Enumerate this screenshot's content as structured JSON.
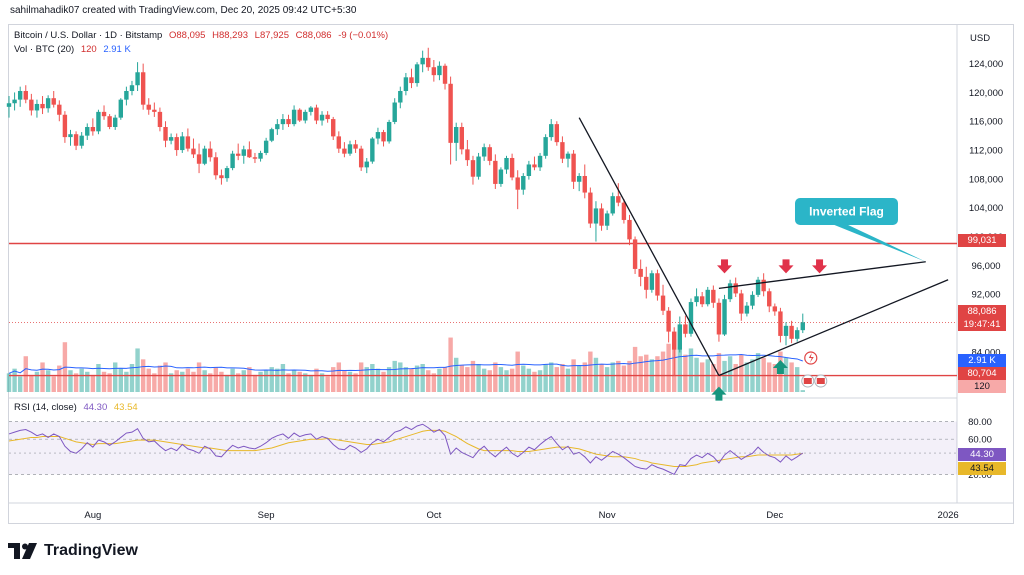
{
  "header": {
    "attribution": "sahilmahadik07 created with TradingView.com, Dec 20, 2025 09:42 UTC+5:30"
  },
  "legend": {
    "symbol": "Bitcoin / U.S. Dollar · 1D · Bitstamp",
    "open": "O88,095",
    "high": "H88,293",
    "low": "L87,925",
    "close": "C88,086",
    "change": "-9 (−0.01%)",
    "vol_label": "Vol · BTC (20)",
    "vol_a": "120",
    "vol_b": "2.91 K",
    "rsi_label": "RSI (14, close)",
    "rsi_value": "44.30",
    "rsi_ma": "43.54"
  },
  "currency": "USD",
  "price_axis": {
    "ticks": [
      "124,000",
      "120,000",
      "116,000",
      "112,000",
      "108,000",
      "104,000",
      "100,000",
      "96,000",
      "92,000",
      "84,000"
    ]
  },
  "rsi_axis": {
    "ticks": [
      "80.00",
      "60.00",
      "20.00"
    ]
  },
  "price_tags": {
    "resistance": "99,031",
    "last": "88,086",
    "countdown": "19:47:41",
    "volume_ma": "2.91 K",
    "support": "80,704",
    "volume": "120",
    "rsi_value": "44.30",
    "rsi_ma": "43.54"
  },
  "time_axis": {
    "labels": [
      "Aug",
      "Sep",
      "Oct",
      "Nov",
      "Dec",
      "2026"
    ]
  },
  "annotation": {
    "pattern_label": "Inverted Flag"
  },
  "brand": {
    "name": "TradingView"
  },
  "colors": {
    "up": "#26a69a",
    "down": "#ef5350",
    "level": "#e04444",
    "callout": "#2bb5c8",
    "rsi": "#7e57c2",
    "rsi_ma": "#e8b82a",
    "arrow_down": "#e0324a",
    "arrow_up": "#16957e"
  },
  "chart_data": {
    "type": "candlestick",
    "symbol": "BTC/USD",
    "timeframe": "1D",
    "start_date": "2025-07-17",
    "price_range": [
      78000,
      127000
    ],
    "levels": {
      "resistance": 99031,
      "support": 80704,
      "last_close": 88086
    },
    "ohlc": [
      [
        118000,
        119500,
        116500,
        118500
      ],
      [
        118500,
        120000,
        117500,
        119000
      ],
      [
        119000,
        120800,
        118000,
        120200
      ],
      [
        120200,
        121000,
        118500,
        119000
      ],
      [
        119000,
        119800,
        116800,
        117500
      ],
      [
        117500,
        119000,
        116500,
        118400
      ],
      [
        118400,
        119500,
        117000,
        117800
      ],
      [
        117800,
        119600,
        117200,
        119200
      ],
      [
        119200,
        120200,
        117900,
        118300
      ],
      [
        118300,
        118900,
        116000,
        116900
      ],
      [
        116900,
        117400,
        113000,
        113800
      ],
      [
        113800,
        114800,
        112600,
        114200
      ],
      [
        114200,
        114600,
        112000,
        112600
      ],
      [
        112600,
        114500,
        112200,
        114000
      ],
      [
        114000,
        115700,
        113400,
        115200
      ],
      [
        115200,
        116400,
        114000,
        114600
      ],
      [
        114600,
        117600,
        114200,
        117300
      ],
      [
        117300,
        118200,
        116200,
        116700
      ],
      [
        116700,
        117000,
        114900,
        115200
      ],
      [
        115200,
        116900,
        114800,
        116500
      ],
      [
        116500,
        119200,
        116200,
        119000
      ],
      [
        119000,
        120800,
        118200,
        120200
      ],
      [
        120200,
        121600,
        119600,
        121000
      ],
      [
        121000,
        124200,
        120200,
        122800
      ],
      [
        122800,
        124000,
        117600,
        118300
      ],
      [
        118300,
        119200,
        116900,
        117600
      ],
      [
        117600,
        118600,
        116600,
        117300
      ],
      [
        117300,
        117900,
        114600,
        115200
      ],
      [
        115200,
        116000,
        112400,
        113300
      ],
      [
        113300,
        114300,
        112800,
        113800
      ],
      [
        113800,
        114300,
        111200,
        112000
      ],
      [
        112000,
        114500,
        111600,
        113900
      ],
      [
        113900,
        115000,
        111800,
        112200
      ],
      [
        112200,
        113600,
        110900,
        111400
      ],
      [
        111400,
        112900,
        108800,
        110100
      ],
      [
        110100,
        112600,
        109900,
        112200
      ],
      [
        112200,
        113200,
        110400,
        111000
      ],
      [
        111000,
        111700,
        107900,
        108500
      ],
      [
        108500,
        109300,
        107200,
        108100
      ],
      [
        108100,
        109800,
        107600,
        109500
      ],
      [
        109500,
        111900,
        109200,
        111500
      ],
      [
        111500,
        112900,
        110600,
        111200
      ],
      [
        111200,
        112600,
        110100,
        112100
      ],
      [
        112100,
        113200,
        110900,
        111000
      ],
      [
        111000,
        111600,
        110200,
        110800
      ],
      [
        110800,
        111900,
        110400,
        111600
      ],
      [
        111600,
        113700,
        111300,
        113300
      ],
      [
        113300,
        115100,
        113100,
        114900
      ],
      [
        114900,
        116300,
        114100,
        115600
      ],
      [
        115600,
        117000,
        114800,
        116300
      ],
      [
        116300,
        116900,
        115200,
        115600
      ],
      [
        115600,
        118200,
        115300,
        117600
      ],
      [
        117600,
        117800,
        115900,
        116100
      ],
      [
        116100,
        117600,
        115700,
        117300
      ],
      [
        117300,
        118100,
        116800,
        117900
      ],
      [
        117900,
        118300,
        115600,
        116100
      ],
      [
        116100,
        117400,
        115400,
        116900
      ],
      [
        116900,
        117400,
        115800,
        116300
      ],
      [
        116300,
        116600,
        113400,
        113900
      ],
      [
        113900,
        114600,
        111600,
        112200
      ],
      [
        112200,
        113100,
        111000,
        111500
      ],
      [
        111500,
        113300,
        111200,
        112800
      ],
      [
        112800,
        113400,
        111600,
        112200
      ],
      [
        112200,
        112600,
        109100,
        109600
      ],
      [
        109600,
        110900,
        108800,
        110400
      ],
      [
        110400,
        113800,
        110100,
        113600
      ],
      [
        113600,
        115100,
        112800,
        114500
      ],
      [
        114500,
        114800,
        112500,
        113200
      ],
      [
        113200,
        116200,
        112900,
        115900
      ],
      [
        115900,
        119200,
        115600,
        118600
      ],
      [
        118600,
        120800,
        117800,
        120200
      ],
      [
        120200,
        122700,
        119600,
        122100
      ],
      [
        122100,
        123300,
        120600,
        121300
      ],
      [
        121300,
        124200,
        120800,
        123900
      ],
      [
        123900,
        125800,
        122800,
        124800
      ],
      [
        124800,
        126200,
        123000,
        123500
      ],
      [
        123500,
        124500,
        121500,
        122400
      ],
      [
        122400,
        124300,
        121700,
        123700
      ],
      [
        123700,
        124000,
        120400,
        121200
      ],
      [
        121200,
        122200,
        110000,
        113000
      ],
      [
        113000,
        115800,
        110500,
        115200
      ],
      [
        115200,
        115800,
        111400,
        112100
      ],
      [
        112100,
        113400,
        109800,
        110600
      ],
      [
        110600,
        111200,
        107200,
        108300
      ],
      [
        108300,
        111600,
        107900,
        111100
      ],
      [
        111100,
        112900,
        110500,
        112400
      ],
      [
        112400,
        112800,
        109900,
        110500
      ],
      [
        110500,
        111400,
        106600,
        107300
      ],
      [
        107300,
        109600,
        106900,
        109300
      ],
      [
        109300,
        111200,
        108700,
        110900
      ],
      [
        110900,
        111500,
        107800,
        108200
      ],
      [
        108200,
        109200,
        103800,
        106500
      ],
      [
        106500,
        108800,
        105800,
        108400
      ],
      [
        108400,
        110500,
        107900,
        110000
      ],
      [
        110000,
        111100,
        109200,
        109600
      ],
      [
        109600,
        111600,
        109100,
        111200
      ],
      [
        111200,
        114200,
        110800,
        113800
      ],
      [
        113800,
        116300,
        113300,
        115600
      ],
      [
        115600,
        116000,
        112600,
        113100
      ],
      [
        113100,
        113900,
        110200,
        110800
      ],
      [
        110800,
        111800,
        109600,
        111500
      ],
      [
        111500,
        112000,
        106600,
        107600
      ],
      [
        107600,
        108800,
        106300,
        108400
      ],
      [
        108400,
        110000,
        105300,
        106100
      ],
      [
        106100,
        106800,
        101200,
        101800
      ],
      [
        101800,
        104900,
        99300,
        103900
      ],
      [
        103900,
        104600,
        100800,
        101500
      ],
      [
        101500,
        103600,
        100900,
        103200
      ],
      [
        103200,
        106100,
        102900,
        105600
      ],
      [
        105600,
        107400,
        104200,
        104700
      ],
      [
        104700,
        105200,
        101800,
        102300
      ],
      [
        102300,
        103000,
        98800,
        99600
      ],
      [
        99600,
        100000,
        94800,
        95500
      ],
      [
        95500,
        96800,
        93100,
        94400
      ],
      [
        94400,
        95800,
        91400,
        92600
      ],
      [
        92600,
        95300,
        92200,
        94900
      ],
      [
        94900,
        95400,
        91100,
        91800
      ],
      [
        91800,
        93300,
        89100,
        89700
      ],
      [
        89700,
        90200,
        85300,
        86800
      ],
      [
        86800,
        87400,
        80704,
        84300
      ],
      [
        84300,
        88900,
        83900,
        87800
      ],
      [
        87800,
        89000,
        86000,
        86500
      ],
      [
        86500,
        91400,
        86100,
        90900
      ],
      [
        90900,
        92800,
        90300,
        91700
      ],
      [
        91700,
        92300,
        90200,
        90600
      ],
      [
        90600,
        93000,
        90300,
        92600
      ],
      [
        92600,
        93200,
        90100,
        90800
      ],
      [
        90800,
        91400,
        85400,
        86400
      ],
      [
        86400,
        91900,
        86200,
        91300
      ],
      [
        91300,
        94000,
        90900,
        93500
      ],
      [
        93500,
        94300,
        91600,
        92100
      ],
      [
        92100,
        92600,
        88300,
        89300
      ],
      [
        89300,
        90900,
        88900,
        90400
      ],
      [
        90400,
        92400,
        89900,
        91900
      ],
      [
        91900,
        94400,
        91600,
        94000
      ],
      [
        94000,
        94900,
        91700,
        92400
      ],
      [
        92400,
        92800,
        89500,
        90300
      ],
      [
        90300,
        90700,
        89000,
        89600
      ],
      [
        89600,
        90100,
        85300,
        86200
      ],
      [
        86200,
        88100,
        84900,
        87600
      ],
      [
        87600,
        88300,
        85200,
        85800
      ],
      [
        85800,
        87400,
        85400,
        87000
      ],
      [
        87000,
        89300,
        86600,
        88086
      ]
    ],
    "trendlines": [
      {
        "name": "flagpole",
        "from": [
          "2025-10-27",
          116500
        ],
        "to": [
          "2025-11-21",
          80704
        ]
      },
      {
        "name": "flag-upper",
        "from": [
          "2025-11-21",
          92800
        ],
        "to": [
          "2025-12-28",
          96500
        ]
      },
      {
        "name": "flag-lower",
        "from": [
          "2025-11-21",
          80704
        ],
        "to": [
          "2026-01-01",
          94000
        ]
      }
    ],
    "markers": {
      "down_arrows_dates": [
        "2025-11-22",
        "2025-12-03",
        "2025-12-09"
      ],
      "up_arrows_dates": [
        "2025-11-21",
        "2025-12-02"
      ]
    },
    "volume_btc": [
      1.2,
      1.5,
      1.0,
      2.3,
      1.1,
      1.3,
      1.9,
      1.4,
      1.0,
      1.7,
      3.2,
      1.4,
      1.2,
      1.5,
      1.3,
      1.1,
      1.8,
      1.3,
      1.2,
      1.9,
      1.5,
      1.3,
      1.8,
      2.8,
      2.1,
      1.5,
      1.2,
      1.7,
      1.9,
      1.2,
      1.4,
      1.3,
      1.5,
      1.3,
      1.9,
      1.4,
      1.2,
      1.6,
      1.3,
      1.1,
      1.5,
      1.2,
      1.4,
      1.6,
      1.1,
      1.3,
      1.4,
      1.6,
      1.5,
      1.8,
      1.2,
      1.4,
      1.3,
      1.2,
      1.1,
      1.5,
      1.2,
      1.0,
      1.6,
      1.9,
      1.4,
      1.3,
      1.2,
      1.9,
      1.6,
      1.8,
      1.5,
      1.3,
      1.6,
      2.0,
      1.9,
      1.6,
      1.5,
      1.7,
      1.8,
      1.4,
      1.2,
      1.5,
      1.6,
      3.5,
      2.2,
      1.7,
      1.6,
      2.0,
      1.8,
      1.5,
      1.4,
      1.9,
      1.6,
      1.4,
      1.5,
      2.6,
      1.7,
      1.5,
      1.3,
      1.4,
      1.8,
      1.9,
      1.6,
      1.8,
      1.5,
      2.1,
      1.7,
      1.9,
      2.6,
      2.2,
      1.8,
      1.6,
      1.9,
      2.0,
      1.7,
      2.0,
      2.9,
      2.3,
      2.4,
      2.1,
      2.3,
      2.6,
      3.1,
      3.4,
      2.9,
      2.4,
      2.8,
      2.2,
      1.9,
      2.1,
      1.8,
      2.5,
      2.0,
      2.3,
      1.8,
      2.4,
      1.9,
      2.1,
      2.5,
      2.2,
      1.9,
      1.8,
      2.6,
      2.2,
      1.9,
      1.6,
      0.12
    ],
    "rsi_range": [
      0,
      100
    ],
    "rsi": [
      66,
      68,
      70,
      71,
      68,
      64,
      66,
      62,
      66,
      63,
      52,
      46,
      44,
      49,
      56,
      51,
      59,
      57,
      53,
      57,
      62,
      67,
      68,
      72,
      61,
      57,
      58,
      52,
      47,
      50,
      47,
      54,
      49,
      47,
      44,
      52,
      49,
      41,
      40,
      47,
      53,
      50,
      52,
      50,
      49,
      52,
      56,
      61,
      64,
      66,
      61,
      67,
      63,
      65,
      66,
      60,
      63,
      61,
      54,
      49,
      48,
      53,
      50,
      45,
      49,
      56,
      60,
      57,
      62,
      68,
      70,
      74,
      71,
      75,
      77,
      73,
      68,
      71,
      64,
      43,
      50,
      45,
      42,
      39,
      47,
      52,
      45,
      40,
      46,
      51,
      44,
      40,
      45,
      51,
      48,
      54,
      59,
      63,
      55,
      48,
      52,
      43,
      45,
      40,
      33,
      40,
      36,
      41,
      46,
      43,
      39,
      34,
      29,
      27,
      26,
      31,
      28,
      26,
      23,
      20,
      31,
      30,
      38,
      42,
      39,
      44,
      40,
      33,
      42,
      47,
      42,
      37,
      41,
      44,
      51,
      45,
      41,
      39,
      34,
      41,
      36,
      40,
      44.3
    ],
    "rsi_ma": [
      58,
      59,
      60,
      61,
      62,
      62,
      63,
      63,
      63,
      63,
      61,
      59,
      57,
      56,
      55,
      54,
      55,
      55,
      55,
      55,
      56,
      57,
      58,
      59,
      59,
      59,
      59,
      58,
      57,
      56,
      55,
      54,
      53,
      52,
      51,
      50,
      50,
      49,
      48,
      47,
      47,
      47,
      47,
      47,
      47,
      48,
      49,
      50,
      52,
      54,
      56,
      57,
      58,
      59,
      60,
      60,
      60,
      61,
      60,
      59,
      58,
      57,
      56,
      55,
      54,
      54,
      55,
      56,
      57,
      59,
      61,
      63,
      65,
      67,
      69,
      70,
      70,
      70,
      69,
      66,
      63,
      59,
      55,
      52,
      49,
      47,
      47,
      47,
      47,
      47,
      47,
      46,
      46,
      46,
      47,
      48,
      49,
      50,
      51,
      51,
      51,
      50,
      49,
      47,
      45,
      43,
      42,
      41,
      40,
      40,
      40,
      39,
      38,
      36,
      35,
      33,
      32,
      31,
      30,
      29,
      29,
      29,
      30,
      31,
      33,
      34,
      35,
      36,
      37,
      38,
      39,
      40,
      40,
      41,
      42,
      42,
      42,
      42,
      42,
      42,
      42,
      43,
      43.54
    ],
    "rsi_axis_levels": [
      20,
      44.3,
      60,
      80
    ]
  }
}
